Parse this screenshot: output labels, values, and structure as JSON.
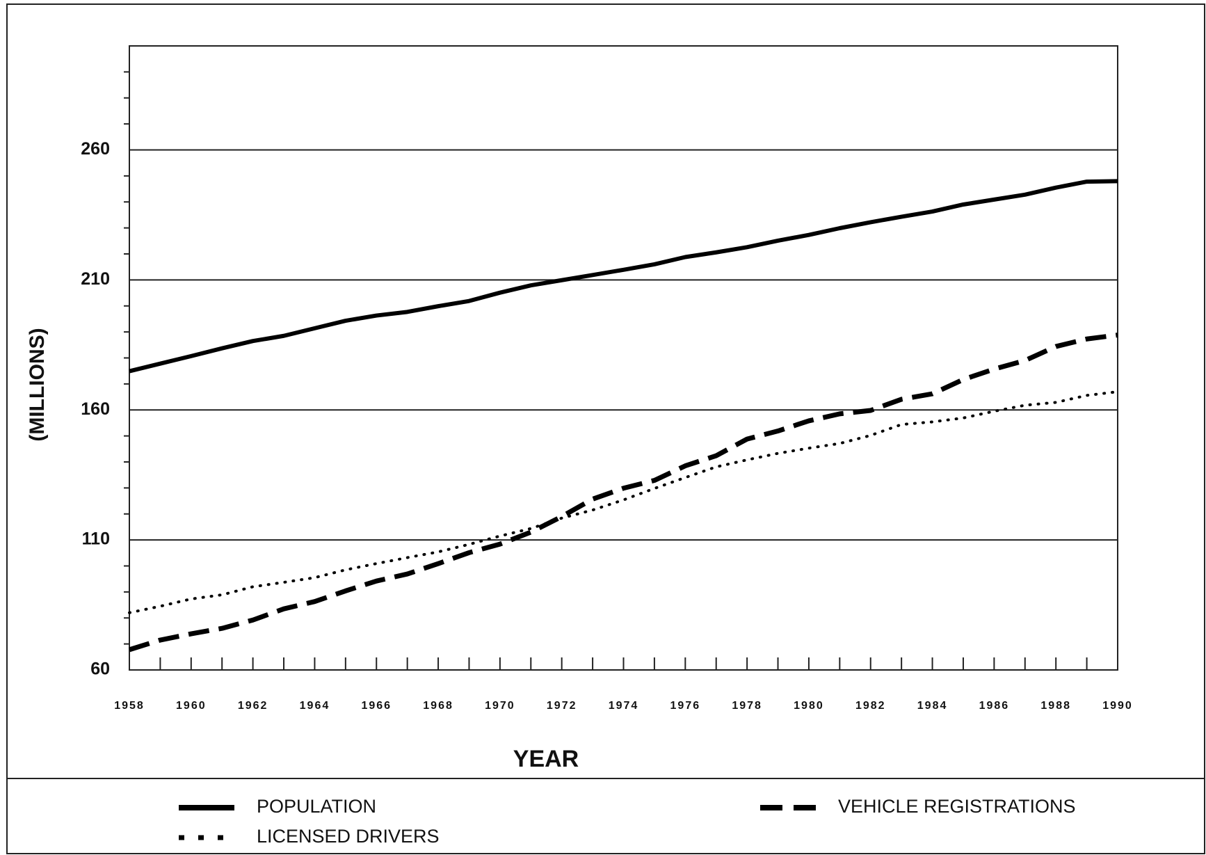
{
  "chart_data": {
    "type": "line",
    "x_label": "YEAR",
    "y_label": "(MILLIONS)",
    "x": [
      1958,
      1959,
      1960,
      1961,
      1962,
      1963,
      1964,
      1965,
      1966,
      1967,
      1968,
      1969,
      1970,
      1971,
      1972,
      1973,
      1974,
      1975,
      1976,
      1977,
      1978,
      1979,
      1980,
      1981,
      1982,
      1983,
      1984,
      1985,
      1986,
      1987,
      1988,
      1989,
      1990
    ],
    "series": [
      {
        "name": "POPULATION",
        "color": "#000000",
        "style": "solid",
        "values": [
          174.9,
          177.8,
          180.7,
          183.7,
          186.5,
          188.5,
          191.4,
          194.3,
          196.3,
          197.7,
          199.9,
          201.9,
          205.1,
          207.9,
          209.9,
          211.9,
          213.9,
          216.0,
          218.8,
          220.6,
          222.6,
          225.1,
          227.3,
          229.9,
          232.2,
          234.3,
          236.3,
          239.0,
          240.9,
          242.8,
          245.5,
          247.8,
          248.0
        ]
      },
      {
        "name": "LICENSED DRIVERS",
        "color": "#000000",
        "style": "dotted",
        "values": [
          82.0,
          84.5,
          87.3,
          88.9,
          92.0,
          93.7,
          95.5,
          98.5,
          100.9,
          103.2,
          105.4,
          108.3,
          111.5,
          114.4,
          118.4,
          121.5,
          125.4,
          129.8,
          134.0,
          138.1,
          140.8,
          143.3,
          145.3,
          147.1,
          150.2,
          154.4,
          155.4,
          156.9,
          159.5,
          161.8,
          162.9,
          165.6,
          167.0
        ]
      },
      {
        "name": "VEHICLE REGISTRATIONS",
        "color": "#000000",
        "style": "dashed",
        "values": [
          67.8,
          71.5,
          73.9,
          76.0,
          79.2,
          83.5,
          86.3,
          90.4,
          94.2,
          96.9,
          100.9,
          105.1,
          108.4,
          113.0,
          119.0,
          125.7,
          129.9,
          132.9,
          138.5,
          142.4,
          148.8,
          151.9,
          155.8,
          158.5,
          159.8,
          164.1,
          166.2,
          171.7,
          175.7,
          179.0,
          184.4,
          187.3,
          188.8
        ]
      }
    ],
    "xlim": [
      1958,
      1990
    ],
    "xticks": [
      1958,
      1960,
      1962,
      1964,
      1966,
      1968,
      1970,
      1972,
      1974,
      1976,
      1978,
      1980,
      1982,
      1984,
      1986,
      1988,
      1990
    ],
    "ylim": [
      60,
      300
    ],
    "yticks": [
      60,
      110,
      160,
      210,
      260
    ],
    "yminorticks": [
      70,
      80,
      90,
      100,
      120,
      130,
      140,
      150,
      170,
      180,
      190,
      200,
      220,
      230,
      240,
      250,
      270,
      280,
      290
    ],
    "grid": true
  }
}
